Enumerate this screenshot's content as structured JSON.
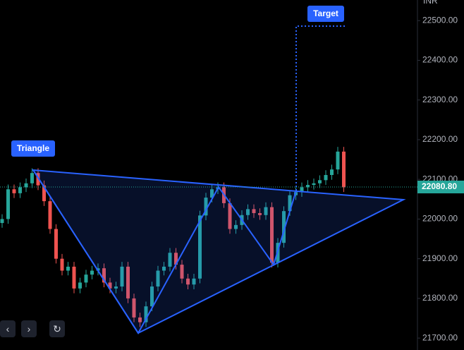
{
  "chart_data": {
    "type": "candlestick",
    "currency": "INR",
    "annotations": {
      "pattern": "Triangle",
      "target": "Target"
    },
    "up_color": "#26a69a",
    "down_color": "#ef5350",
    "open": [
      21990,
      22000,
      22075,
      22065,
      22080,
      22090,
      22116,
      22085,
      22045,
      21975,
      21900,
      21870,
      21880,
      21825,
      21840,
      21860,
      21870,
      21876,
      21840,
      21825,
      21830,
      21880,
      21800,
      21752,
      21740,
      21780,
      21830,
      21870,
      21880,
      21915,
      21885,
      21850,
      21835,
      21850,
      22009,
      22054,
      22075,
      22080,
      22040,
      21975,
      21985,
      22010,
      22025,
      22015,
      22010,
      22030,
      21890,
      21940,
      22020,
      22060,
      22068,
      22080,
      22086,
      22090,
      22098,
      22111,
      22125,
      22170
    ],
    "high": [
      22012,
      22087,
      22087,
      22092,
      22102,
      22128,
      22128,
      22097,
      22057,
      21987,
      21912,
      21892,
      21892,
      21852,
      21872,
      21882,
      21888,
      21888,
      21852,
      21842,
      21892,
      21892,
      21812,
      21764,
      21792,
      21842,
      21882,
      21892,
      21927,
      21927,
      21897,
      21862,
      21862,
      22021,
      22066,
      22087,
      22092,
      22092,
      22052,
      21997,
      22022,
      22037,
      22037,
      22027,
      22042,
      22042,
      21952,
      22032,
      22072,
      22080,
      22092,
      22098,
      22102,
      22110,
      22123,
      22137,
      22182,
      22182
    ],
    "low": [
      21978,
      21988,
      22053,
      22053,
      22068,
      22078,
      22073,
      22033,
      21963,
      21888,
      21858,
      21858,
      21813,
      21813,
      21828,
      21848,
      21858,
      21828,
      21813,
      21813,
      21818,
      21788,
      21740,
      21728,
      21728,
      21768,
      21818,
      21858,
      21868,
      21873,
      21838,
      21823,
      21823,
      21838,
      21997,
      22042,
      22063,
      22028,
      21963,
      21963,
      21973,
      21998,
      22003,
      21998,
      21998,
      21878,
      21878,
      21928,
      22008,
      22048,
      22056,
      22068,
      22074,
      22078,
      22086,
      22099,
      22113,
      22068
    ],
    "close": [
      22000,
      22075,
      22065,
      22080,
      22090,
      22116,
      22085,
      22045,
      21975,
      21900,
      21870,
      21880,
      21825,
      21840,
      21860,
      21870,
      21876,
      21840,
      21825,
      21830,
      21880,
      21800,
      21752,
      21740,
      21780,
      21830,
      21870,
      21880,
      21915,
      21885,
      21850,
      21835,
      21850,
      22009,
      22054,
      22075,
      22080,
      22040,
      21975,
      21985,
      22010,
      22025,
      22015,
      22010,
      22030,
      21890,
      21940,
      22020,
      22060,
      22068,
      22080,
      22086,
      22090,
      22098,
      22111,
      22125,
      22170,
      22080
    ],
    "last_price": {
      "value": 22080.8,
      "label": "22080.80"
    },
    "ylim": [
      21670,
      22552
    ],
    "yticks": [
      {
        "value": 21700,
        "label": "21700.00"
      },
      {
        "value": 21800,
        "label": "21800.00"
      },
      {
        "value": 21900,
        "label": "21900.00"
      },
      {
        "value": 22000,
        "label": "22000.00"
      },
      {
        "value": 22100,
        "label": "22100.00"
      },
      {
        "value": 22200,
        "label": "22200.00"
      },
      {
        "value": 22300,
        "label": "22300.00"
      },
      {
        "value": 22400,
        "label": "22400.00"
      },
      {
        "value": 22500,
        "label": "22500.00"
      }
    ]
  }
}
